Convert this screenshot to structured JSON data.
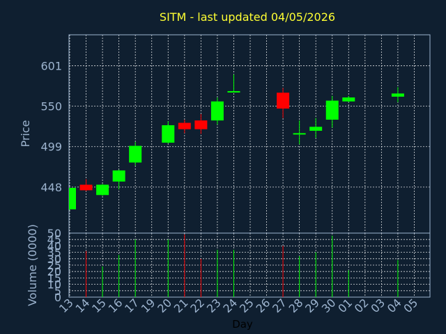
{
  "chart_data": [
    {
      "type": "candlestick",
      "title": "SITM - last updated 04/05/2026",
      "ylabel": "Price",
      "ylim": [
        390,
        640
      ],
      "yticks": [
        448,
        499,
        550,
        601
      ],
      "grid": true,
      "categories": [
        "13",
        "14",
        "15",
        "16",
        "17",
        "19",
        "20",
        "21",
        "22",
        "23",
        "24",
        "25",
        "26",
        "27",
        "28",
        "29",
        "30",
        "01",
        "02",
        "03",
        "04",
        "05"
      ],
      "candles": [
        {
          "day": "13",
          "open": 420,
          "high": 447,
          "low": 419,
          "close": 447
        },
        {
          "day": "14",
          "open": 451,
          "high": 458,
          "low": 443,
          "close": 444
        },
        {
          "day": "15",
          "open": 438,
          "high": 452,
          "low": 437,
          "close": 451
        },
        {
          "day": "16",
          "open": 455,
          "high": 470,
          "low": 445,
          "close": 469
        },
        {
          "day": "17",
          "open": 479,
          "high": 505,
          "low": 475,
          "close": 500
        },
        {
          "day": "20",
          "open": 504,
          "high": 531,
          "low": 503,
          "close": 526
        },
        {
          "day": "21",
          "open": 529,
          "high": 533,
          "low": 516,
          "close": 521
        },
        {
          "day": "22",
          "open": 532,
          "high": 540,
          "low": 515,
          "close": 521
        },
        {
          "day": "23",
          "open": 532,
          "high": 561,
          "low": 527,
          "close": 556
        },
        {
          "day": "24",
          "open": 568,
          "high": 590,
          "low": 568,
          "close": 569
        },
        {
          "day": "27",
          "open": 567,
          "high": 573,
          "low": 535,
          "close": 547
        },
        {
          "day": "28",
          "open": 515,
          "high": 532,
          "low": 502,
          "close": 516
        },
        {
          "day": "29",
          "open": 519,
          "high": 535,
          "low": 510,
          "close": 524
        },
        {
          "day": "30",
          "open": 533,
          "high": 563,
          "low": 523,
          "close": 557
        },
        {
          "day": "01",
          "open": 556,
          "high": 563,
          "low": 555,
          "close": 561
        },
        {
          "day": "04",
          "open": 562,
          "high": 574,
          "low": 555,
          "close": 566
        }
      ]
    },
    {
      "type": "bar",
      "ylabel": "Volume (0000)",
      "xlabel": "Day",
      "ylim": [
        0,
        50
      ],
      "yticks": [
        0,
        5,
        10,
        15,
        20,
        25,
        30,
        35,
        40,
        45,
        50
      ],
      "categories": [
        "13",
        "14",
        "15",
        "16",
        "17",
        "19",
        "20",
        "21",
        "22",
        "23",
        "24",
        "25",
        "26",
        "27",
        "28",
        "29",
        "30",
        "01",
        "02",
        "03",
        "04",
        "05"
      ],
      "values": [
        {
          "day": "14",
          "value": 36,
          "direction": "down"
        },
        {
          "day": "15",
          "value": 24,
          "direction": "up"
        },
        {
          "day": "16",
          "value": 33,
          "direction": "up"
        },
        {
          "day": "17",
          "value": 45,
          "direction": "up"
        },
        {
          "day": "20",
          "value": 45,
          "direction": "up"
        },
        {
          "day": "21",
          "value": 49,
          "direction": "down"
        },
        {
          "day": "22",
          "value": 30,
          "direction": "down"
        },
        {
          "day": "23",
          "value": 37,
          "direction": "up"
        },
        {
          "day": "24",
          "value": 37,
          "direction": "up"
        },
        {
          "day": "27",
          "value": 40,
          "direction": "down"
        },
        {
          "day": "28",
          "value": 32,
          "direction": "up"
        },
        {
          "day": "29",
          "value": 35,
          "direction": "up"
        },
        {
          "day": "30",
          "value": 48,
          "direction": "up"
        },
        {
          "day": "01",
          "value": 21,
          "direction": "up"
        },
        {
          "day": "04",
          "value": 29,
          "direction": "up"
        }
      ]
    }
  ],
  "colors": {
    "up": "#00ff00",
    "down": "#ff0000",
    "title": "#ffff33",
    "axis_text": "#9db4cf",
    "background": "#0f1f30",
    "grid": "#ffffff"
  }
}
